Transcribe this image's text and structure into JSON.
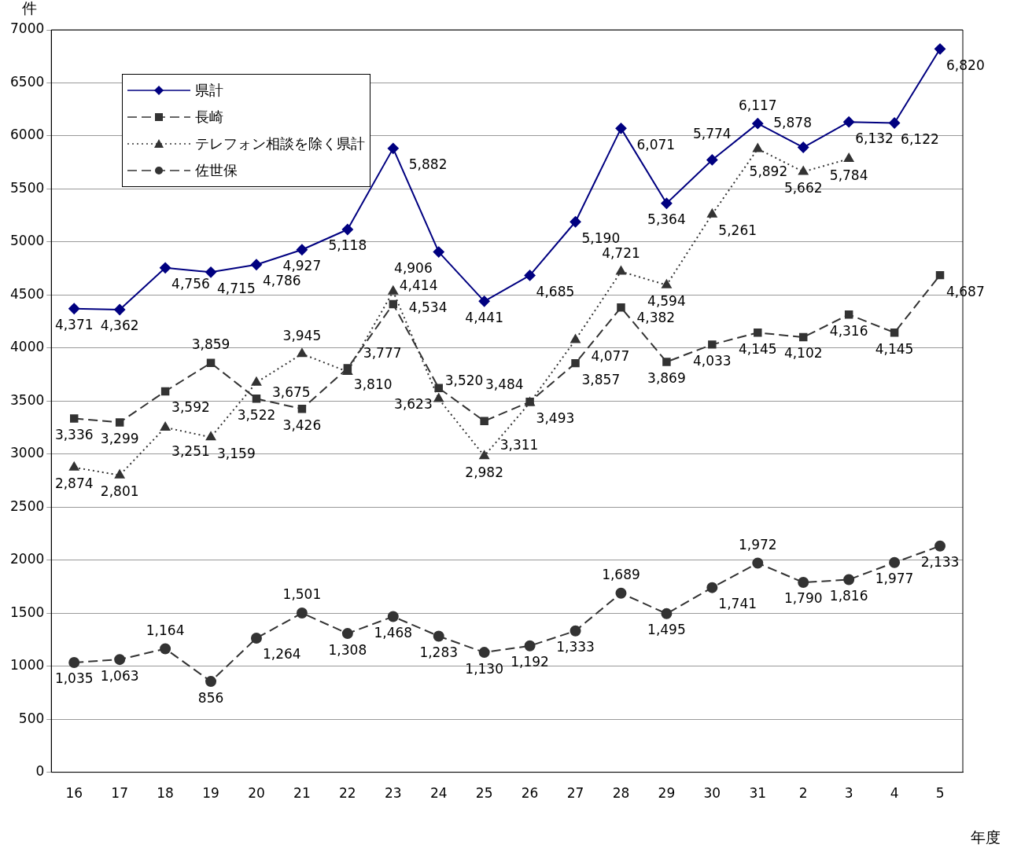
{
  "chart_data": {
    "type": "line",
    "ylabel": "件",
    "xlabel": "年度",
    "categories": [
      "16",
      "17",
      "18",
      "19",
      "20",
      "21",
      "22",
      "23",
      "24",
      "25",
      "26",
      "27",
      "28",
      "29",
      "30",
      "31",
      "2",
      "3",
      "4",
      "5"
    ],
    "series": [
      {
        "name": "県計",
        "color": "#000080",
        "marker": "diamond",
        "line_style": "solid",
        "values": [
          4371,
          4362,
          4756,
          4715,
          4786,
          4927,
          5118,
          5882,
          4906,
          4441,
          4685,
          5190,
          6071,
          5364,
          5774,
          6117,
          5892,
          6132,
          6122,
          6820
        ],
        "value_labels": [
          "4,371",
          "4,362",
          "4,756",
          "4,715",
          "4,786",
          "4,927",
          "5,118",
          "5,882",
          "4,906",
          "4,441",
          "4,685",
          "5,190",
          "6,071",
          "5,364",
          "5,774",
          "6,117",
          "5,892",
          "6,132",
          "6,122",
          "6,820"
        ]
      },
      {
        "name": "長崎",
        "color": "#333333",
        "marker": "square",
        "line_style": "dashed",
        "values": [
          3336,
          3299,
          3592,
          3859,
          3522,
          3426,
          3810,
          4414,
          3623,
          3311,
          3493,
          3857,
          4382,
          3869,
          4033,
          4145,
          4102,
          4316,
          4145,
          4687
        ],
        "value_labels": [
          "3,336",
          "3,299",
          "3,592",
          "3,859",
          "3,522",
          "3,426",
          "3,810",
          "4,414",
          "3,623",
          "3,311",
          "3,493",
          "3,857",
          "4,382",
          "3,869",
          "4,033",
          "4,145",
          "4,102",
          "4,316",
          "4,145",
          "4,687"
        ]
      },
      {
        "name": "テレフォン相談を除く県計",
        "color": "#333333",
        "marker": "triangle",
        "line_style": "dotted",
        "values": [
          2874,
          2801,
          3251,
          3159,
          3675,
          3945,
          3777,
          4534,
          3520,
          2982,
          3484,
          4077,
          4721,
          4594,
          5261,
          5878,
          5662,
          5784,
          null,
          null
        ],
        "value_labels": [
          "2,874",
          "2,801",
          "3,251",
          "3,159",
          "3,675",
          "3,945",
          "3,777",
          "4,534",
          "3,520",
          "2,982",
          "3,484",
          "4,077",
          "4,721",
          "4,594",
          "5,261",
          "5,878",
          "5,662",
          "5,784",
          null,
          null
        ]
      },
      {
        "name": "佐世保",
        "color": "#333333",
        "marker": "circle",
        "line_style": "dashed",
        "values": [
          1035,
          1063,
          1164,
          856,
          1264,
          1501,
          1308,
          1468,
          1283,
          1130,
          1192,
          1333,
          1689,
          1495,
          1741,
          1972,
          1790,
          1816,
          1977,
          2133
        ],
        "value_labels": [
          "1,035",
          "1,063",
          "1,164",
          "856",
          "1,264",
          "1,501",
          "1,308",
          "1,468",
          "1,283",
          "1,130",
          "1,192",
          "1,333",
          "1,689",
          "1,495",
          "1,741",
          "1,972",
          "1,790",
          "1,816",
          "1,977",
          "2,133"
        ]
      }
    ],
    "ylim": [
      0,
      7000
    ],
    "yticks": [
      0,
      500,
      1000,
      1500,
      2000,
      2500,
      3000,
      3500,
      4000,
      4500,
      5000,
      5500,
      6000,
      6500,
      7000
    ],
    "grid": "y",
    "legend": "top left"
  }
}
